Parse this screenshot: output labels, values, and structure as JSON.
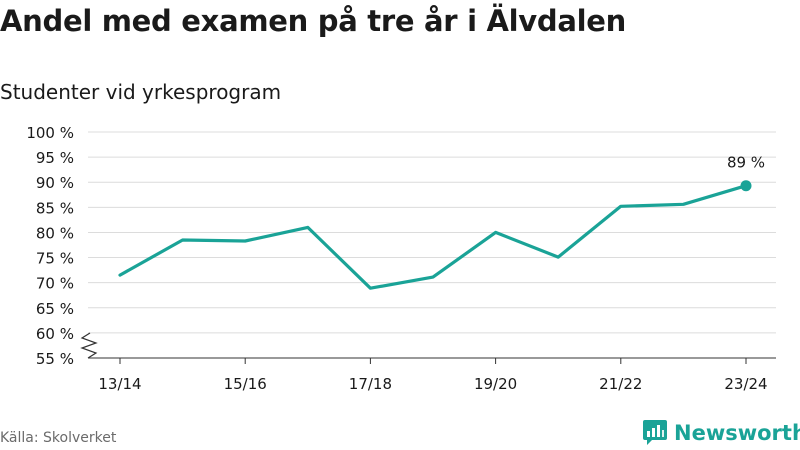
{
  "title": "Andel med examen på tre år i Älvdalen",
  "subtitle": "Studenter vid yrkesprogram",
  "source": "Källa: Skolverket",
  "brand": {
    "name": "Newsworthy",
    "icon": "newsworthy-logo-icon",
    "color": "#1aa397"
  },
  "chart_data": {
    "type": "line",
    "x": [
      "13/14",
      "14/15",
      "15/16",
      "16/17",
      "17/18",
      "18/19",
      "19/20",
      "20/21",
      "21/22",
      "22/23",
      "23/24"
    ],
    "x_tick_labels": [
      "13/14",
      "15/16",
      "17/18",
      "19/20",
      "21/22",
      "23/24"
    ],
    "series": [
      {
        "values": [
          71.5,
          78.5,
          78.3,
          81.0,
          68.9,
          71.1,
          80.0,
          75.1,
          85.2,
          85.6,
          89.3
        ],
        "color": "#1aa397"
      }
    ],
    "y_ticks": [
      "55 %",
      "60 %",
      "65 %",
      "70 %",
      "75 %",
      "80 %",
      "85 %",
      "90 %",
      "95 %",
      "100 %"
    ],
    "ylim": [
      55,
      100
    ],
    "y_axis_break": true,
    "grid": true,
    "annotation": {
      "index": 10,
      "label": "89 %"
    }
  }
}
